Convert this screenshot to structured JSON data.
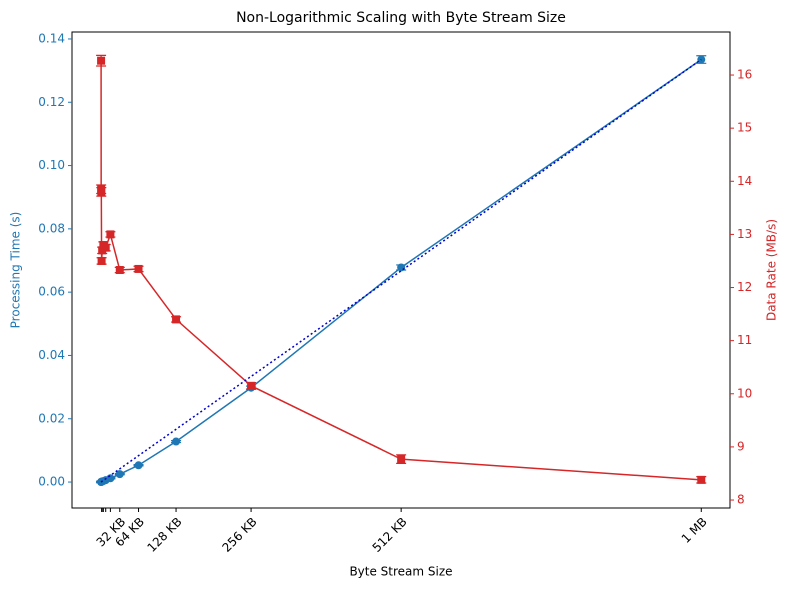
{
  "chart_data": {
    "type": "line",
    "title": "Non-Logarithmic Scaling with Byte Stream Size",
    "xlabel": "Byte Stream Size",
    "ylabel": "Processing Time (s)",
    "y2label": "Data Rate (MB/s)",
    "xlim": [
      -49.5,
      1073
    ],
    "xticks": [
      {
        "value": 1,
        "label": null
      },
      {
        "value": 2,
        "label": null
      },
      {
        "value": 4,
        "label": null
      },
      {
        "value": 8,
        "label": null
      },
      {
        "value": 16,
        "label": null
      },
      {
        "value": 32,
        "label": "32 KB"
      },
      {
        "value": 64,
        "label": "64 KB"
      },
      {
        "value": 128,
        "label": "128 KB"
      },
      {
        "value": 256,
        "label": "256 KB"
      },
      {
        "value": 512,
        "label": "512 KB"
      },
      {
        "value": 1024,
        "label": "1 MB"
      }
    ],
    "ylim": [
      -0.0082,
      0.1422
    ],
    "yticks": [
      {
        "value": 0,
        "label": "0.00"
      },
      {
        "value": 0.02,
        "label": "0.02"
      },
      {
        "value": 0.04,
        "label": "0.04"
      },
      {
        "value": 0.06,
        "label": "0.06"
      },
      {
        "value": 0.08,
        "label": "0.08"
      },
      {
        "value": 0.1,
        "label": "0.10"
      },
      {
        "value": 0.12,
        "label": "0.12"
      },
      {
        "value": 0.14,
        "label": "0.14"
      }
    ],
    "y2lim": [
      7.85,
      16.81
    ],
    "y2ticks": [
      8,
      9,
      10,
      11,
      12,
      13,
      14,
      15,
      16
    ],
    "ycolor": "#1f77b4",
    "y2color": "#d62728",
    "series": [
      {
        "color": "#1f77b4",
        "axis": "y",
        "marker": "circle",
        "linestyle": "solid",
        "x": [
          0.125,
          0.25,
          0.5,
          1,
          2,
          4,
          8,
          16,
          32,
          64,
          128,
          256,
          512,
          1024
        ],
        "values": [
          0.0,
          0.0,
          0.0001,
          0.0001,
          0.0002,
          0.0003,
          0.0006,
          0.0012,
          0.0025,
          0.0053,
          0.0128,
          0.0298,
          0.0678,
          0.1335
        ],
        "errors": [
          0.0002,
          0.0002,
          0.0002,
          0.0002,
          0.0002,
          0.0002,
          0.0002,
          0.0002,
          0.0002,
          0.0002,
          0.0003,
          0.0005,
          0.0008,
          0.0012
        ]
      },
      {
        "color": "#d62728",
        "axis": "y2",
        "marker": "square",
        "linestyle": "solid",
        "x": [
          0.125,
          0.25,
          0.5,
          1,
          2,
          4,
          8,
          16,
          32,
          64,
          128,
          256,
          512,
          1024
        ],
        "values": [
          16.27,
          13.85,
          13.8,
          12.5,
          12.7,
          12.8,
          12.75,
          13.0,
          12.33,
          12.35,
          11.4,
          10.15,
          8.77,
          8.38
        ],
        "errors": [
          0.1,
          0.08,
          0.08,
          0.06,
          0.06,
          0.06,
          0.06,
          0.05,
          0.05,
          0.05,
          0.05,
          0.06,
          0.08,
          0.06
        ]
      },
      {
        "color": "#0000cd",
        "axis": "y",
        "marker": "none",
        "linestyle": "dotted",
        "x": [
          0,
          1024
        ],
        "values": [
          0.0,
          0.1335
        ]
      }
    ]
  }
}
